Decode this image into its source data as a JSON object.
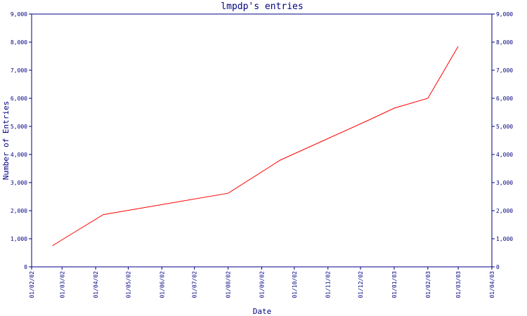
{
  "chart_data": {
    "type": "line",
    "title": "lmpdp's entries",
    "xlabel": "Date",
    "ylabel": "Number of Entries",
    "ylim": [
      0,
      9000
    ],
    "y_ticks": [
      0,
      1000,
      2000,
      3000,
      4000,
      5000,
      6000,
      7000,
      8000,
      9000
    ],
    "y_tick_labels": [
      "0",
      "1,000",
      "2,000",
      "3,000",
      "4,000",
      "5,000",
      "6,000",
      "7,000",
      "8,000",
      "9,000"
    ],
    "x_tick_labels": [
      "01/02/02",
      "01/03/02",
      "01/04/02",
      "01/05/02",
      "01/06/02",
      "01/07/02",
      "01/08/02",
      "01/09/02",
      "01/10/02",
      "01/11/02",
      "01/12/02",
      "01/01/03",
      "01/02/03",
      "01/03/03",
      "01/04/03"
    ],
    "right_axis": true,
    "grid": false,
    "x": [
      "2002-02-20",
      "2002-04-08",
      "2002-08-01",
      "2002-09-18",
      "2002-12-10",
      "2003-01-01",
      "2003-02-01",
      "2003-03-01"
    ],
    "values": [
      750,
      1860,
      2620,
      3800,
      5250,
      5650,
      6000,
      7850
    ],
    "line_color": "#ff0000",
    "axis_color": "#000080"
  }
}
